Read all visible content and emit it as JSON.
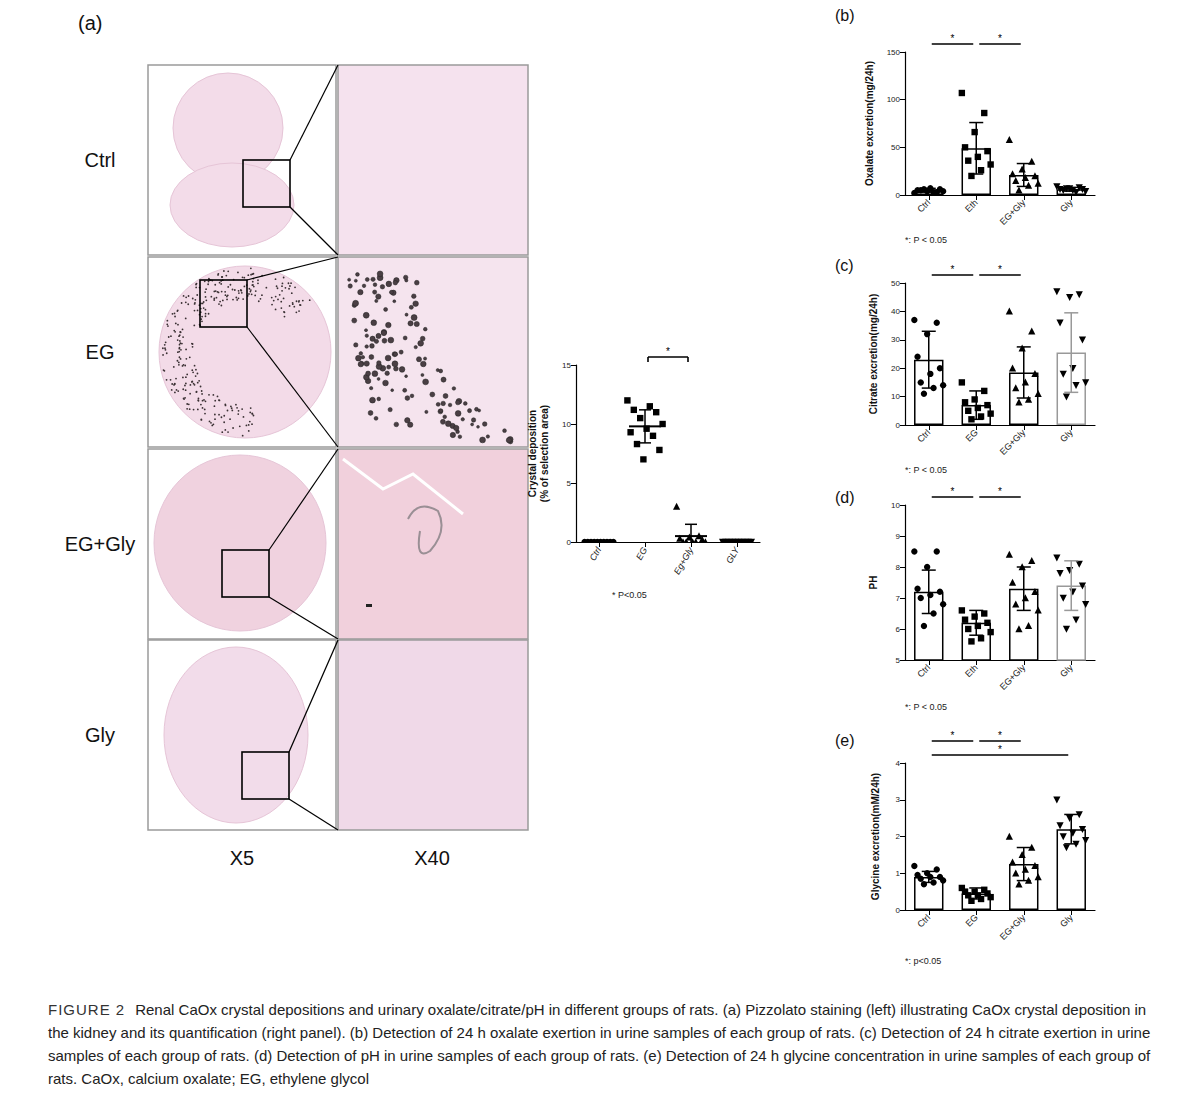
{
  "panel_a": {
    "label": "(a)",
    "rows": [
      "Ctrl",
      "EG",
      "EG+Gly",
      "Gly"
    ],
    "magnifications": [
      "X5",
      "X40"
    ]
  },
  "chart_data": [
    {
      "type": "scatter",
      "y_label": "Crystal deposition\n(% of selection area)",
      "categories": [
        "Ctrl",
        "EG",
        "Eg+Gly",
        "GLY"
      ],
      "values": [
        0,
        9.8,
        0.5,
        0
      ],
      "errors": [
        0,
        1.4,
        1.0,
        0
      ],
      "points": [
        [
          0,
          0,
          0,
          0,
          0,
          0,
          0,
          0,
          0,
          0
        ],
        [
          12,
          11.5,
          11.2,
          11,
          10.5,
          10,
          9.6,
          9.3,
          9,
          8.3,
          7.8,
          7
        ],
        [
          3,
          0.5,
          0.4,
          0.3,
          0.2,
          0,
          0,
          0,
          0,
          0
        ],
        [
          0,
          0,
          0,
          0,
          0,
          0,
          0,
          0,
          0,
          0
        ]
      ],
      "color": "#000000",
      "ylim": [
        0,
        15
      ],
      "yticks": [
        0,
        5,
        10,
        15
      ],
      "grid": false,
      "significance": [
        {
          "between": [
            "EG",
            "Eg+Gly"
          ],
          "label": "*"
        }
      ],
      "note": "* P<0.05"
    },
    {
      "type": "bar",
      "panel": "(b)",
      "y_label": "Oxalate excretion(mg/24h)",
      "categories": [
        "Ctrl",
        "Eth",
        "EG+Gly",
        "Gly"
      ],
      "values": [
        5,
        49,
        21,
        6
      ],
      "errors": [
        2,
        27,
        12,
        2
      ],
      "points": [
        [
          2,
          3,
          4,
          5,
          6,
          7,
          5,
          4,
          3,
          6
        ],
        [
          107,
          86,
          66,
          50,
          46,
          40,
          36,
          32,
          26,
          20
        ],
        [
          58,
          35,
          27,
          22,
          20,
          18,
          15,
          12,
          10,
          5
        ],
        [
          9,
          8,
          7,
          6,
          6,
          5,
          5,
          4,
          3,
          7
        ]
      ],
      "color": "#000000",
      "ylim": [
        0,
        150
      ],
      "yticks": [
        0,
        50,
        100,
        150
      ],
      "grid": false,
      "significance": [
        {
          "between": [
            "Ctrl",
            "Eth"
          ],
          "label": "*"
        },
        {
          "between": [
            "Eth",
            "EG+Gly"
          ],
          "label": "*"
        }
      ],
      "note": "*: P < 0.05"
    },
    {
      "type": "bar",
      "panel": "(c)",
      "y_label": "Citrate excretion(mg/24h)",
      "categories": [
        "Ctrl",
        "EG",
        "EG+Gly",
        "Gly"
      ],
      "values": [
        23,
        7,
        18.5,
        25.5
      ],
      "errors": [
        10,
        5,
        9,
        14
      ],
      "points": [
        [
          37,
          36,
          32,
          24,
          20,
          18,
          15,
          14,
          13,
          11
        ],
        [
          15,
          12,
          9,
          8,
          7,
          6,
          5,
          4,
          3,
          2
        ],
        [
          40,
          33,
          27,
          20,
          18,
          15,
          13,
          11,
          9,
          8
        ],
        [
          47,
          46,
          45,
          36,
          30,
          20,
          18,
          15,
          14,
          10
        ]
      ],
      "colors": [
        "#000000",
        "#000000",
        "#000000",
        "#999999"
      ],
      "ylim": [
        0,
        50
      ],
      "yticks": [
        0,
        10,
        20,
        30,
        40,
        50
      ],
      "grid": false,
      "significance": [
        {
          "between": [
            "Ctrl",
            "EG"
          ],
          "label": "*"
        },
        {
          "between": [
            "EG",
            "EG+Gly"
          ],
          "label": "*"
        }
      ],
      "note": "*: P < 0.05"
    },
    {
      "type": "bar",
      "panel": "(d)",
      "y_label": "PH",
      "categories": [
        "Ctrl",
        "Eth",
        "EG+Gly",
        "Gly"
      ],
      "values": [
        7.2,
        6.2,
        7.3,
        7.4
      ],
      "errors": [
        0.7,
        0.4,
        0.7,
        0.8
      ],
      "points": [
        [
          8.5,
          8.5,
          8,
          7.3,
          7.2,
          7.1,
          7,
          6.8,
          6.5,
          6.1
        ],
        [
          6.6,
          6.5,
          6.4,
          6.3,
          6.2,
          6.1,
          6,
          5.9,
          5.7,
          5.6
        ],
        [
          8.4,
          8.2,
          8,
          7.5,
          7.2,
          7,
          6.8,
          6.6,
          6.1,
          6.0
        ],
        [
          8.3,
          8.1,
          7.9,
          7.8,
          7.4,
          7.2,
          7,
          6.8,
          6.3,
          6.0
        ]
      ],
      "colors": [
        "#000000",
        "#000000",
        "#000000",
        "#999999"
      ],
      "ylim": [
        5,
        10
      ],
      "yticks": [
        5,
        6,
        7,
        8,
        9,
        10
      ],
      "grid": false,
      "significance": [
        {
          "between": [
            "Ctrl",
            "Eth"
          ],
          "label": "*"
        },
        {
          "between": [
            "Eth",
            "EG+Gly"
          ],
          "label": "*"
        }
      ],
      "note": "*: P < 0.05"
    },
    {
      "type": "bar",
      "panel": "(e)",
      "y_label": "Glycine excretion(mM/24h)",
      "categories": [
        "Ctrl",
        "EG",
        "EG+Gly",
        "Gly"
      ],
      "values": [
        0.9,
        0.45,
        1.25,
        2.2
      ],
      "errors": [
        0.15,
        0.15,
        0.45,
        0.4
      ],
      "points": [
        [
          1.2,
          1.1,
          1.0,
          0.95,
          0.9,
          0.9,
          0.85,
          0.8,
          0.75,
          0.7
        ],
        [
          0.6,
          0.55,
          0.5,
          0.5,
          0.45,
          0.4,
          0.4,
          0.35,
          0.3,
          0.25
        ],
        [
          2.0,
          1.7,
          1.5,
          1.3,
          1.2,
          1.1,
          1.0,
          0.9,
          0.8,
          0.7
        ],
        [
          3.0,
          2.6,
          2.5,
          2.3,
          2.2,
          2.1,
          2.0,
          1.9,
          1.8,
          1.7
        ]
      ],
      "color": "#000000",
      "ylim": [
        0,
        4
      ],
      "yticks": [
        0,
        1,
        2,
        3,
        4
      ],
      "grid": false,
      "significance": [
        {
          "between": [
            "Ctrl",
            "EG"
          ],
          "label": "*"
        },
        {
          "between": [
            "EG",
            "EG+Gly"
          ],
          "label": "*"
        },
        {
          "between": [
            "Ctrl",
            "Gly"
          ],
          "label": "*"
        }
      ],
      "note": "*: p<0.05"
    }
  ],
  "caption": {
    "label": "FIGURE 2",
    "text": "Renal CaOx crystal depositions and urinary oxalate/citrate/pH in different groups of rats. (a) Pizzolato staining (left) illustrating CaOx crystal deposition in the kidney and its quantification (right panel). (b) Detection of 24 h oxalate exertion in urine samples of each group of rats. (c) Detection of 24 h citrate exertion in urine samples of each group of rats. (d) Detection of pH in urine samples of each group of rats. (e) Detection of 24 h glycine concentration in urine samples of each group of rats. CaOx, calcium oxalate; EG, ethylene glycol"
  }
}
